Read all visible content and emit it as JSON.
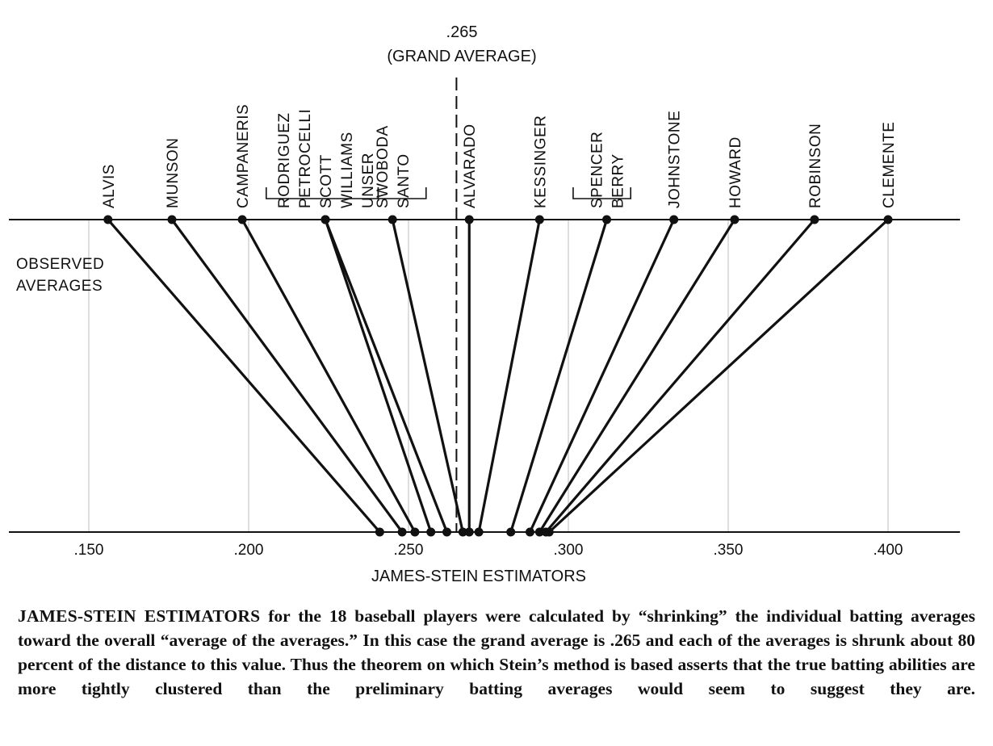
{
  "chart_data": {
    "type": "line",
    "title": ".265",
    "subtitle": "(GRAND AVERAGE)",
    "top_axis_label": "OBSERVED AVERAGES",
    "top_axis_label_lines": [
      "OBSERVED",
      "AVERAGES"
    ],
    "xlabel": "JAMES-STEIN ESTIMATORS",
    "xlim": [
      0.125,
      0.4225
    ],
    "ticks": [
      0.15,
      0.2,
      0.25,
      0.3,
      0.35,
      0.4
    ],
    "tick_labels": [
      ".150",
      ".200",
      ".250",
      ".300",
      ".350",
      ".400"
    ],
    "grand_average": 0.265,
    "grid": true,
    "points": [
      {
        "group": "ALVIS",
        "observed": 0.156,
        "estimate": 0.241
      },
      {
        "group": "MUNSON",
        "observed": 0.176,
        "estimate": 0.248
      },
      {
        "group": "CAMPANERIS",
        "observed": 0.198,
        "estimate": 0.252
      },
      {
        "group": "RODRIGUEZ PETROCELLI SCOTT WILLIAMS UNSER",
        "observed": 0.224,
        "estimate": 0.257
      },
      {
        "group": "RODRIGUEZ PETROCELLI SCOTT WILLIAMS UNSER",
        "observed": 0.224,
        "estimate": 0.262
      },
      {
        "group": "SWOBODA SANTO",
        "observed": 0.245,
        "estimate": 0.267
      },
      {
        "group": "ALVARADO",
        "observed": 0.269,
        "estimate": 0.269
      },
      {
        "group": "KESSINGER",
        "observed": 0.291,
        "estimate": 0.272
      },
      {
        "group": "SPENCER BERRY",
        "observed": 0.312,
        "estimate": 0.282
      },
      {
        "group": "JOHNSTONE",
        "observed": 0.333,
        "estimate": 0.288
      },
      {
        "group": "HOWARD",
        "observed": 0.352,
        "estimate": 0.291
      },
      {
        "group": "ROBINSON",
        "observed": 0.377,
        "estimate": 0.293
      },
      {
        "group": "CLEMENTE",
        "observed": 0.4,
        "estimate": 0.294
      }
    ],
    "labels": [
      {
        "lines": [
          "ALVIS"
        ],
        "at": 0.156
      },
      {
        "lines": [
          "MUNSON"
        ],
        "at": 0.176
      },
      {
        "lines": [
          "CAMPANERIS"
        ],
        "at": 0.198
      },
      {
        "lines": [
          "RODRIGUEZ",
          "PETROCELLI",
          "SCOTT",
          "WILLIAMS",
          "UNSER"
        ],
        "at": 0.224,
        "bracket": [
          0.2055,
          0.2405
        ]
      },
      {
        "lines": [
          "SWOBODA",
          "SANTO"
        ],
        "at": 0.245,
        "bracket": [
          0.2405,
          0.2555
        ]
      },
      {
        "lines": [
          "ALVARADO"
        ],
        "at": 0.269
      },
      {
        "lines": [
          "KESSINGER"
        ],
        "at": 0.291
      },
      {
        "lines": [
          "SPENCER",
          "BERRY"
        ],
        "at": 0.312,
        "bracket": [
          0.3015,
          0.3195
        ]
      },
      {
        "lines": [
          "JOHNSTONE"
        ],
        "at": 0.333
      },
      {
        "lines": [
          "HOWARD"
        ],
        "at": 0.352
      },
      {
        "lines": [
          "ROBINSON"
        ],
        "at": 0.377
      },
      {
        "lines": [
          "CLEMENTE"
        ],
        "at": 0.4
      }
    ]
  },
  "caption": {
    "lead": "JAMES-STEIN ESTIMATORS",
    "lines": [
      "for the 18 baseball players were calculated by “shrinking” the",
      "individual batting averages toward the overall “average of the averages.” In this case the grand",
      "average is .265 and each of the averages is shrunk about 80 percent of the distance to this value.",
      "Thus the theorem on which Stein’s method is based asserts that the true batting abilities are",
      "more tightly clustered than the preliminary batting averages would seem to suggest they are."
    ]
  }
}
